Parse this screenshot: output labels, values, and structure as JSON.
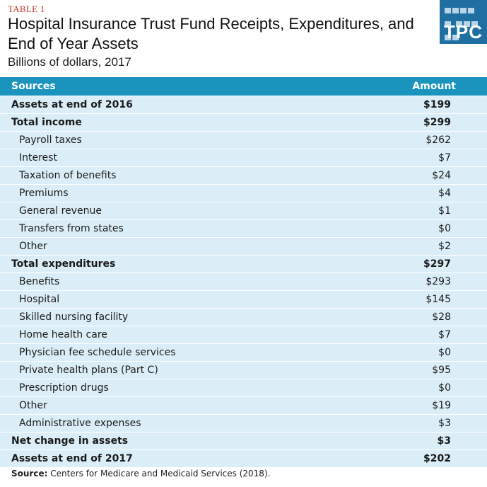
{
  "table_label": "TABLE 1",
  "title": "Hospital Insurance Trust Fund Receipts, Expenditures, and End of Year Assets",
  "subtitle": "Billions of dollars, 2017",
  "logo_text": "TPC",
  "colors": {
    "header": "#1b94bd",
    "row": "#dbeef7",
    "table_label": "#c0392b",
    "logo": "#1f6fa3"
  },
  "columns": {
    "sources": "Sources",
    "amount": "Amount"
  },
  "rows": [
    {
      "label": "Assets at end of 2016",
      "amount": "$199",
      "style": "bold"
    },
    {
      "label": "Total income",
      "amount": "$299",
      "style": "bold"
    },
    {
      "label": "Payroll taxes",
      "amount": "$262",
      "style": "indent"
    },
    {
      "label": "Interest",
      "amount": "$7",
      "style": "indent"
    },
    {
      "label": "Taxation of benefits",
      "amount": "$24",
      "style": "indent"
    },
    {
      "label": "Premiums",
      "amount": "$4",
      "style": "indent"
    },
    {
      "label": "General revenue",
      "amount": "$1",
      "style": "indent"
    },
    {
      "label": "Transfers from states",
      "amount": "$0",
      "style": "indent"
    },
    {
      "label": "Other",
      "amount": "$2",
      "style": "indent"
    },
    {
      "label": "Total expenditures",
      "amount": "$297",
      "style": "bold"
    },
    {
      "label": "Benefits",
      "amount": "$293",
      "style": "indent"
    },
    {
      "label": "Hospital",
      "amount": "$145",
      "style": "indent"
    },
    {
      "label": "Skilled nursing facility",
      "amount": "$28",
      "style": "indent"
    },
    {
      "label": "Home health care",
      "amount": "$7",
      "style": "indent"
    },
    {
      "label": "Physician fee schedule services",
      "amount": "$0",
      "style": "indent"
    },
    {
      "label": "Private health plans (Part C)",
      "amount": "$95",
      "style": "indent"
    },
    {
      "label": "Prescription drugs",
      "amount": "$0",
      "style": "indent"
    },
    {
      "label": "Other",
      "amount": "$19",
      "style": "indent"
    },
    {
      "label": "Administrative expenses",
      "amount": "$3",
      "style": "indent"
    },
    {
      "label": "Net change in assets",
      "amount": "$3",
      "style": "bold"
    },
    {
      "label": "Assets at end of 2017",
      "amount": "$202",
      "style": "bold"
    }
  ],
  "source": {
    "prefix": "Source:",
    "text": "Centers for Medicare and Medicaid Services (2018)."
  }
}
